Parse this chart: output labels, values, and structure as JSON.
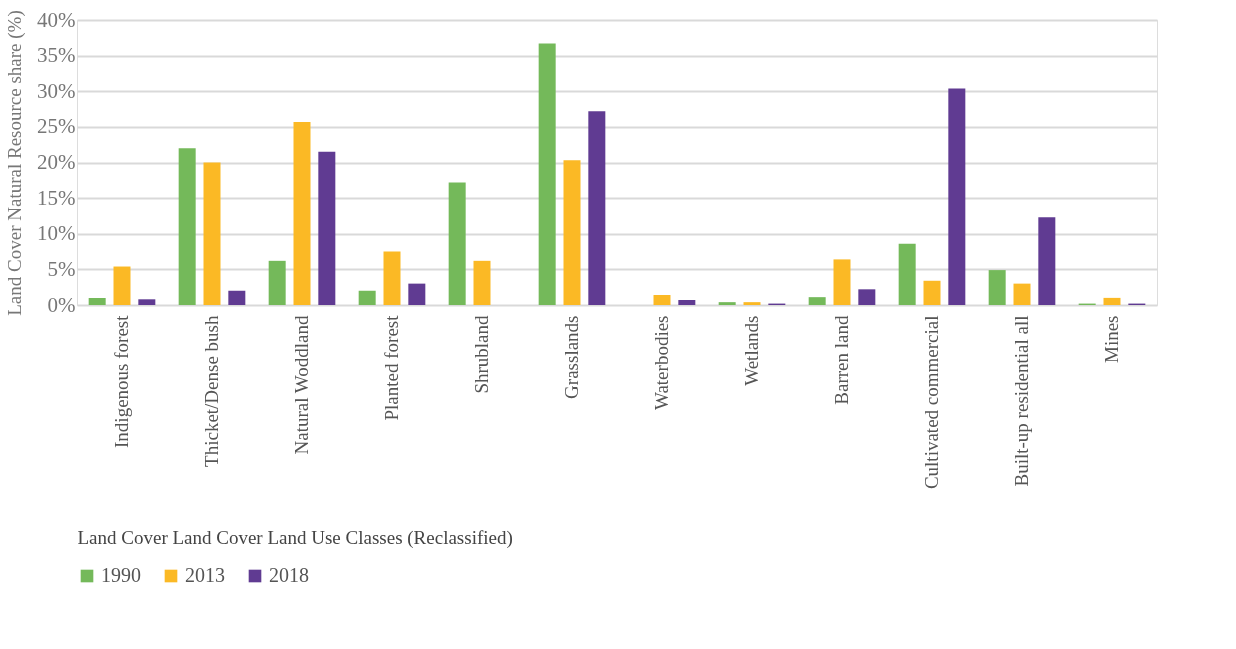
{
  "chart_data": {
    "type": "bar",
    "ylabel": "Land  Cover  Natural Resource share (%)",
    "xlabel": "Land Cover Land Cover Land  Use  Classes  (Reclassified)",
    "categories": [
      "Indigenous forest",
      "Thicket/Dense bush",
      "Natural Woddland",
      "Planted forest",
      "Shrubland",
      "Grasslands",
      "Waterbodies",
      "Wetlands",
      "Barren land",
      "Cultivated commercial",
      "Built-up residential all",
      "Mines"
    ],
    "series": [
      {
        "name": "1990",
        "color": "#74b95a",
        "values": [
          1.0,
          22.0,
          6.2,
          2.0,
          17.2,
          36.7,
          0,
          0.4,
          1.1,
          8.6,
          4.9,
          0.2
        ]
      },
      {
        "name": "2013",
        "color": "#fbb925",
        "values": [
          5.4,
          20.0,
          25.7,
          7.5,
          6.2,
          20.3,
          1.4,
          0.4,
          6.4,
          3.4,
          3.0,
          1.0
        ]
      },
      {
        "name": "2018",
        "color": "#603b92",
        "values": [
          0.8,
          2.0,
          21.5,
          3.0,
          0,
          27.2,
          0.7,
          0.2,
          2.2,
          30.4,
          12.3,
          0.2
        ]
      }
    ],
    "ylim": [
      0,
      40
    ],
    "yticks": [
      {
        "value": 0,
        "label": "0%"
      },
      {
        "value": 5,
        "label": "5%"
      },
      {
        "value": 10,
        "label": "10%"
      },
      {
        "value": 15,
        "label": "15%"
      },
      {
        "value": 20,
        "label": "20%"
      },
      {
        "value": 25,
        "label": "25%"
      },
      {
        "value": 30,
        "label": "30%"
      },
      {
        "value": 35,
        "label": "35%"
      },
      {
        "value": 40,
        "label": "40%"
      }
    ],
    "grid": "y",
    "legend": "bottom"
  }
}
